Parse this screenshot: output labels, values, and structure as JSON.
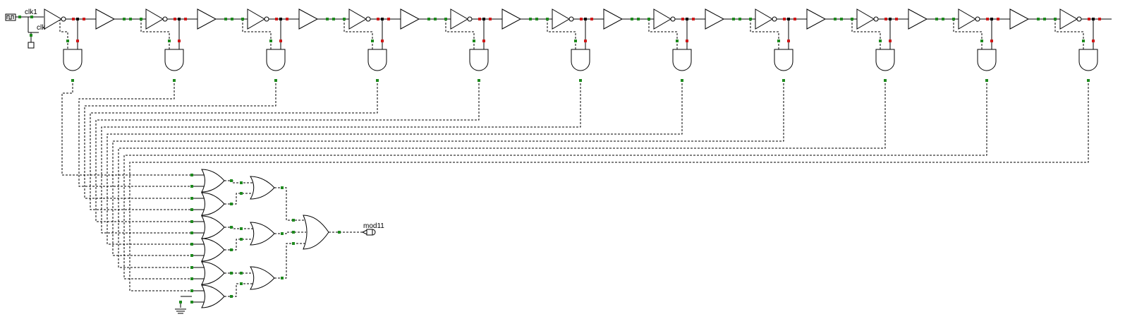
{
  "labels": {
    "clk1": "clk1",
    "clk": "clk",
    "mod11": "mod11"
  },
  "circuit": {
    "stage_count": 11,
    "and_gate_count": 11,
    "or2_gate_count": 6,
    "or2_second_level_count": 3,
    "or3_gate_count": 1
  },
  "colors": {
    "wire": "#000000",
    "pin_green": "#1e8a1e",
    "pin_red": "#d01818",
    "junction": "#000000",
    "background": "#ffffff"
  },
  "icons": {
    "clock_source": "clock-source-icon",
    "probe": "probe-icon",
    "output": "output-led-icon",
    "ground": "ground-icon"
  }
}
